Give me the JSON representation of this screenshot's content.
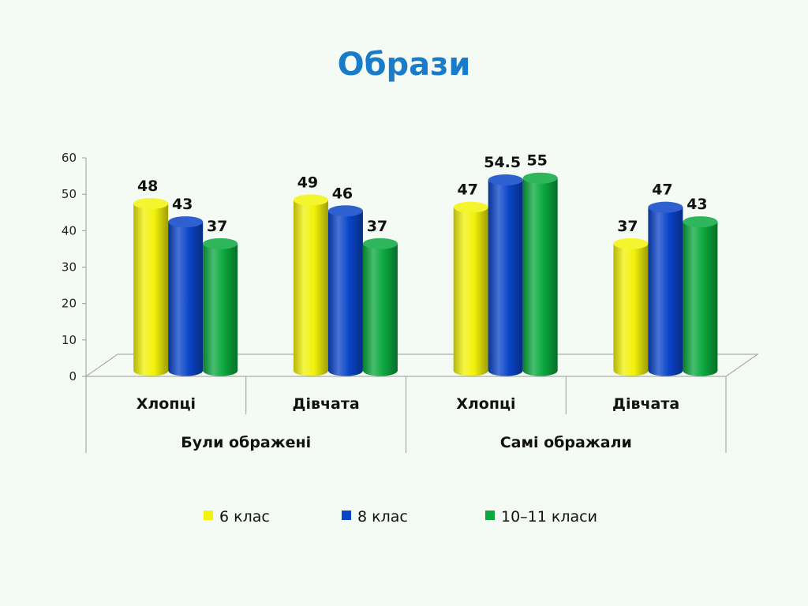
{
  "title": "Образи",
  "chart_data": {
    "type": "bar",
    "title": "Образи",
    "ylim": [
      0,
      60
    ],
    "yticks": [
      "0",
      "10",
      "20",
      "30",
      "40",
      "50",
      "60"
    ],
    "groups": [
      {
        "label": "Були ображені",
        "categories": [
          "Хлопці",
          "Дівчата"
        ]
      },
      {
        "label": "Самі ображали",
        "categories": [
          "Хлопці",
          "Дівчата"
        ]
      }
    ],
    "categories": [
      "Хлопці",
      "Дівчата",
      "Хлопці",
      "Дівчата"
    ],
    "series": [
      {
        "name": "6 клас",
        "color": "#f2f20a",
        "values": [
          48,
          49,
          47,
          37
        ],
        "labels": [
          "48",
          "49",
          "47",
          "37"
        ]
      },
      {
        "name": "8 клас",
        "color": "#0a44c8",
        "values": [
          43,
          46,
          54.5,
          47
        ],
        "labels": [
          "43",
          "46",
          "54.5",
          "47"
        ]
      },
      {
        "name": "10–11 класи",
        "color": "#0aa83e",
        "values": [
          37,
          37,
          55,
          43
        ],
        "labels": [
          "37",
          "37",
          "55",
          "43"
        ]
      }
    ],
    "legend_position": "bottom",
    "grid": false
  }
}
